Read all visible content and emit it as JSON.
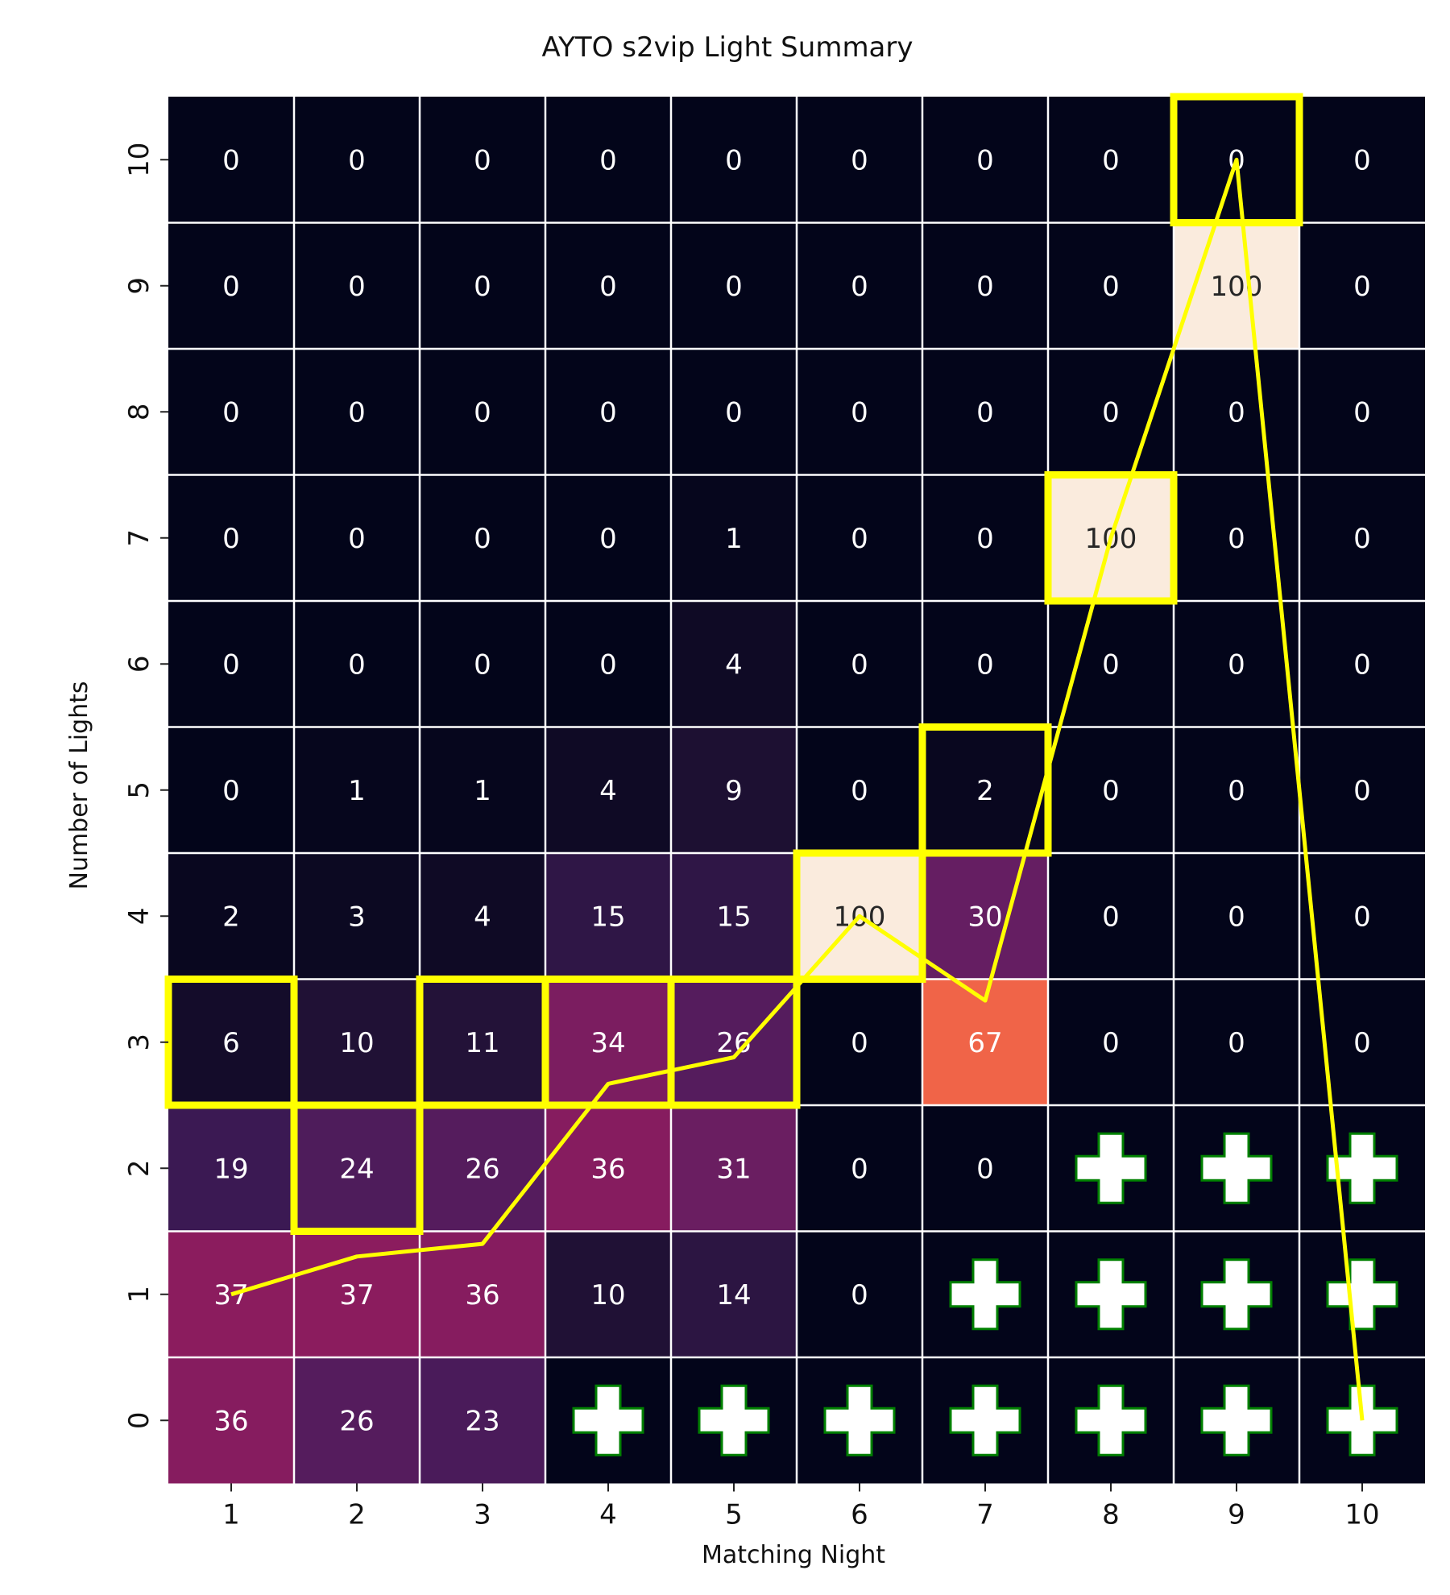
{
  "chart_data": {
    "type": "heatmap",
    "title": "AYTO s2vip Light Summary",
    "xlabel": "Matching Night",
    "ylabel": "Number of Lights",
    "x_ticks": [
      "1",
      "2",
      "3",
      "4",
      "5",
      "6",
      "7",
      "8",
      "9",
      "10"
    ],
    "y_ticks": [
      "0",
      "1",
      "2",
      "3",
      "4",
      "5",
      "6",
      "7",
      "8",
      "9",
      "10"
    ],
    "value_range": [
      0,
      100
    ],
    "colormap": "rocket",
    "grid": true,
    "matrix_by_night": [
      [
        36,
        37,
        19,
        6,
        2,
        0,
        0,
        0,
        0,
        0,
        0
      ],
      [
        26,
        37,
        24,
        10,
        3,
        1,
        0,
        0,
        0,
        0,
        0
      ],
      [
        23,
        36,
        26,
        11,
        4,
        1,
        0,
        0,
        0,
        0,
        0
      ],
      [
        null,
        10,
        36,
        34,
        15,
        4,
        0,
        0,
        0,
        0,
        0
      ],
      [
        null,
        14,
        31,
        26,
        15,
        9,
        4,
        1,
        0,
        0,
        0
      ],
      [
        null,
        0,
        0,
        0,
        100,
        0,
        0,
        0,
        0,
        0,
        0
      ],
      [
        null,
        null,
        0,
        67,
        30,
        2,
        0,
        0,
        0,
        0,
        0
      ],
      [
        null,
        null,
        null,
        0,
        0,
        0,
        0,
        100,
        0,
        0,
        0
      ],
      [
        null,
        null,
        null,
        0,
        0,
        0,
        0,
        0,
        0,
        100,
        0
      ],
      [
        null,
        null,
        null,
        0,
        0,
        0,
        0,
        0,
        0,
        0,
        0
      ]
    ],
    "actual_lights": [
      3,
      2,
      3,
      3,
      3,
      4,
      5,
      7,
      10,
      null
    ],
    "expected_lights_line": [
      1.0,
      1.3,
      1.4,
      2.67,
      2.88,
      4.0,
      3.33,
      7.0,
      10.0,
      0.0
    ],
    "excluded_marker": "plus",
    "colors": {
      "highlight_box": "#ffff00",
      "line": "#ffff00",
      "plus_fill": "#ffffff",
      "plus_stroke": "#008000",
      "gridline": "#ffffff"
    }
  }
}
